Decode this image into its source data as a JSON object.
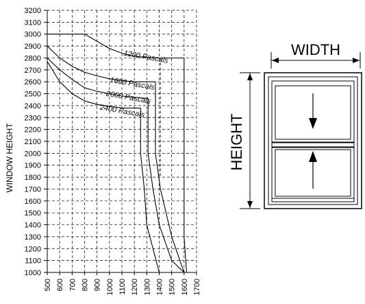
{
  "chart_data": {
    "type": "line",
    "ylabel": "WINDOW HEIGHT",
    "xlabel": "",
    "xlim": [
      500,
      1700
    ],
    "ylim": [
      1000,
      3200
    ],
    "x_ticks": [
      500,
      600,
      700,
      800,
      900,
      1000,
      1100,
      1200,
      1300,
      1400,
      1500,
      1600,
      1700
    ],
    "y_ticks": [
      1000,
      1100,
      1200,
      1300,
      1400,
      1500,
      1600,
      1700,
      1800,
      1900,
      2000,
      2100,
      2200,
      2300,
      2400,
      2500,
      2600,
      2700,
      2800,
      2900,
      3000,
      3100,
      3200
    ],
    "x_tick_labels": [
      "500",
      "600",
      "700",
      "800",
      "900",
      "1000",
      "1100",
      "1200",
      "1300",
      "1400",
      "1500",
      "1600",
      "1700"
    ],
    "y_tick_labels": [
      "1000",
      "1100",
      "1200",
      "1300",
      "1400",
      "1500",
      "1600",
      "1700",
      "1800",
      "1900",
      "2000",
      "2100",
      "2200",
      "2300",
      "2400",
      "2500",
      "2600",
      "2700",
      "2800",
      "2900",
      "3000",
      "3100",
      "3200"
    ],
    "grid": true,
    "grid_style": "dashed",
    "series": [
      {
        "name": "1200 Pascals",
        "points": [
          [
            500,
            3000
          ],
          [
            800,
            3000
          ],
          [
            900,
            2940
          ],
          [
            1000,
            2880
          ],
          [
            1100,
            2840
          ],
          [
            1200,
            2815
          ],
          [
            1300,
            2805
          ],
          [
            1410,
            2800
          ],
          [
            1600,
            2800
          ],
          [
            1600,
            1800
          ]
        ],
        "dashed_segment": [
          [
            1410,
            2800
          ],
          [
            1410,
            1800
          ]
        ],
        "label_at": [
          1290,
          2790
        ]
      },
      {
        "name": "1600 Pascals",
        "points": [
          [
            500,
            2900
          ],
          [
            600,
            2800
          ],
          [
            700,
            2730
          ],
          [
            800,
            2680
          ],
          [
            900,
            2650
          ],
          [
            1000,
            2625
          ],
          [
            1100,
            2610
          ],
          [
            1200,
            2600
          ],
          [
            1370,
            2600
          ],
          [
            1370,
            2000
          ],
          [
            1410,
            1700
          ],
          [
            1500,
            1300
          ],
          [
            1600,
            1000
          ]
        ],
        "label_at": [
          1180,
          2565
        ]
      },
      {
        "name": "2000 Pascals",
        "points": [
          [
            500,
            2800
          ],
          [
            600,
            2700
          ],
          [
            700,
            2620
          ],
          [
            800,
            2550
          ],
          [
            900,
            2520
          ],
          [
            1000,
            2500
          ],
          [
            1100,
            2480
          ],
          [
            1200,
            2470
          ],
          [
            1310,
            2460
          ],
          [
            1310,
            2000
          ],
          [
            1350,
            1700
          ],
          [
            1400,
            1400
          ],
          [
            1500,
            1100
          ],
          [
            1600,
            1000
          ]
        ],
        "label_at": [
          1150,
          2450
        ]
      },
      {
        "name": "2400 Pascals",
        "points": [
          [
            500,
            2770
          ],
          [
            600,
            2600
          ],
          [
            700,
            2500
          ],
          [
            800,
            2440
          ],
          [
            900,
            2410
          ],
          [
            1000,
            2395
          ],
          [
            1100,
            2380
          ],
          [
            1250,
            2380
          ],
          [
            1250,
            2000
          ],
          [
            1280,
            1700
          ],
          [
            1300,
            1400
          ],
          [
            1350,
            1200
          ],
          [
            1400,
            1000
          ]
        ],
        "label_at": [
          1100,
          2335
        ]
      },
      {
        "name": "",
        "points": [
          [
            1600,
            1800
          ],
          [
            1600,
            1300
          ],
          [
            1620,
            1000
          ]
        ]
      }
    ]
  },
  "diagram": {
    "width_label": "WIDTH",
    "height_label": "HEIGHT"
  }
}
